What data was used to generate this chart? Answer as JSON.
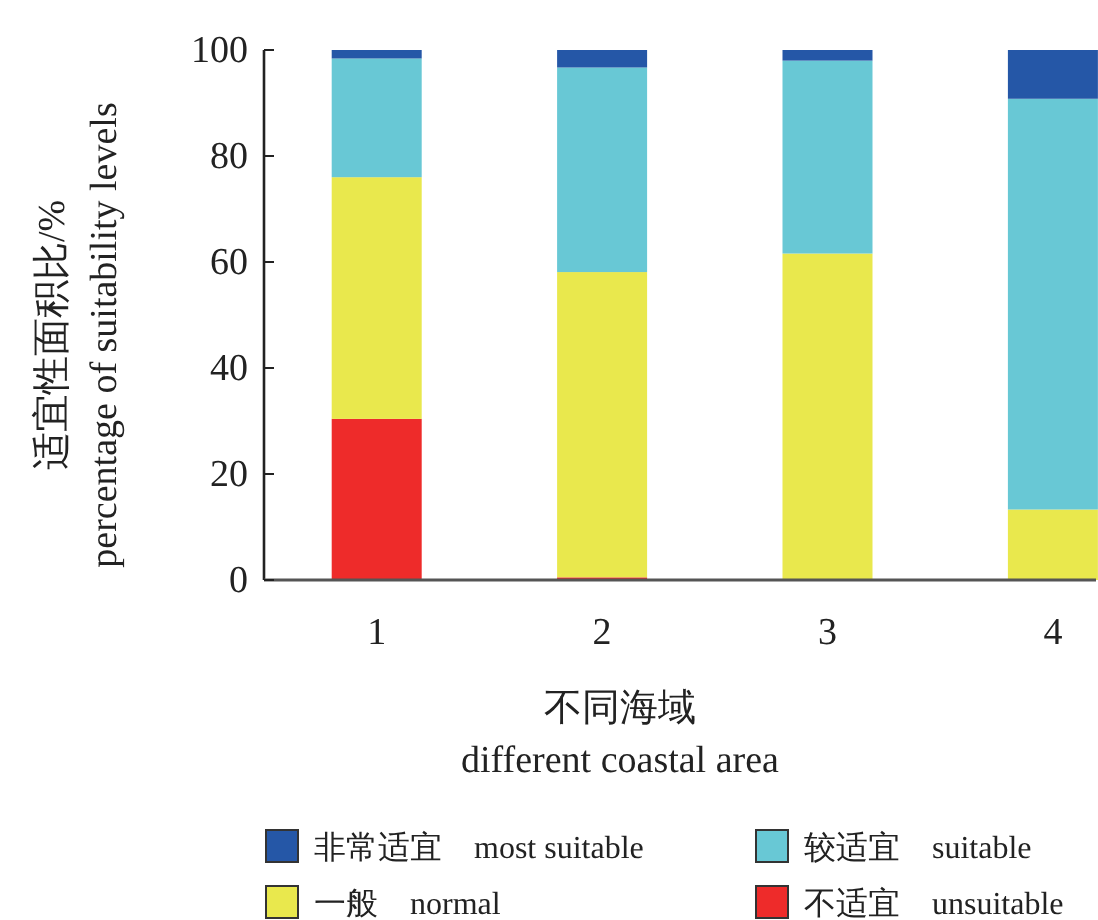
{
  "chart_data": {
    "type": "bar",
    "stacked": true,
    "xlabel": "不同海域\ndifferent coastal area",
    "ylabel": "适宜性面积比/%\npercentage of suitability levels",
    "categories": [
      "1",
      "2",
      "3",
      "4"
    ],
    "series": [
      {
        "name": "不适宜　unsuitable",
        "color": "#ee2b2a",
        "values": [
          30.4,
          0.5,
          0,
          0
        ]
      },
      {
        "name": "一般　normal",
        "color": "#e9e84d",
        "values": [
          45.6,
          57.6,
          61.6,
          13.3
        ]
      },
      {
        "name": "较适宜　suitable",
        "color": "#68c8d5",
        "values": [
          22.4,
          38.6,
          36.4,
          77.5
        ]
      },
      {
        "name": "非常适宜　most suitable",
        "color": "#2557a7",
        "values": [
          1.6,
          3.3,
          2.0,
          9.2
        ]
      }
    ],
    "ylim": [
      0,
      100
    ],
    "yticks": [
      0,
      20,
      40,
      60,
      80,
      100
    ],
    "legend": "bottom",
    "grid": false
  }
}
